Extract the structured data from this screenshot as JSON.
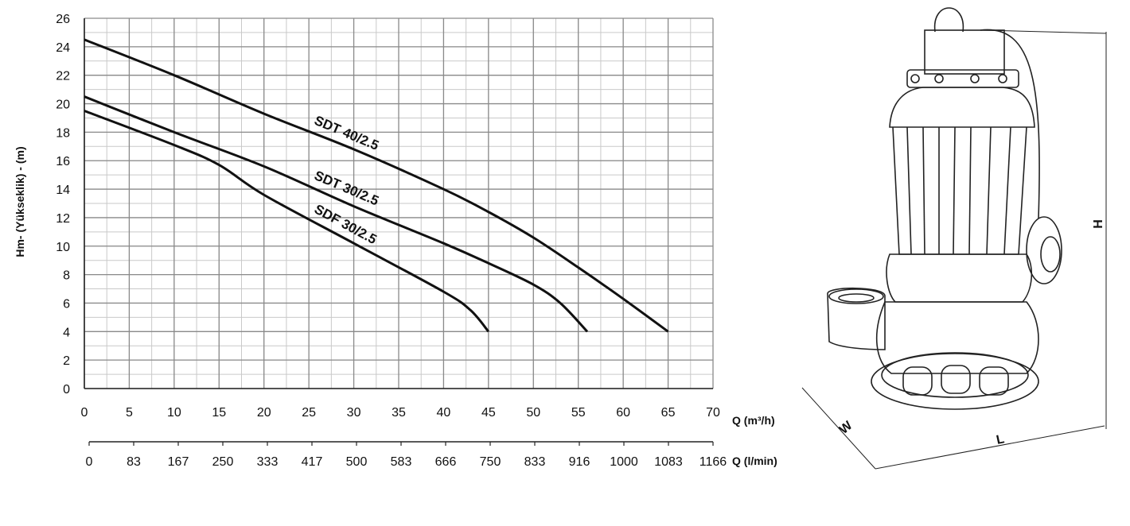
{
  "chart_data": {
    "type": "line",
    "xlabel": "Q (m³/h)",
    "xlabel_secondary": "Q (l/min)",
    "ylabel": "Hm- (Yükseklik) - (m)",
    "xlim": [
      0,
      70
    ],
    "ylim": [
      0,
      26
    ],
    "grid": true,
    "x_ticks": [
      "0",
      "5",
      "10",
      "15",
      "20",
      "25",
      "30",
      "35",
      "40",
      "45",
      "50",
      "55",
      "60",
      "65",
      "70"
    ],
    "y_ticks": [
      "0",
      "2",
      "4",
      "6",
      "8",
      "10",
      "12",
      "14",
      "16",
      "18",
      "20",
      "22",
      "24",
      "26"
    ],
    "secondary_x_ticks": [
      "0",
      "83",
      "167",
      "250",
      "333",
      "417",
      "500",
      "583",
      "666",
      "750",
      "833",
      "916",
      "1000",
      "1083",
      "1166"
    ],
    "series": [
      {
        "name": "SDT 40/2.5",
        "x": [
          0,
          10,
          20,
          30,
          40,
          45,
          50,
          55,
          60,
          65
        ],
        "y": [
          24.5,
          22.0,
          19.3,
          16.8,
          14.0,
          12.4,
          10.6,
          8.5,
          6.3,
          4.0
        ]
      },
      {
        "name": "SDT 30/2.5",
        "x": [
          0,
          10,
          20,
          30,
          40,
          45,
          50,
          53,
          56
        ],
        "y": [
          20.5,
          18.0,
          15.6,
          12.8,
          10.2,
          8.8,
          7.3,
          6.0,
          4.0
        ]
      },
      {
        "name": "SDF 30/2.5",
        "x": [
          0,
          10,
          15,
          20,
          30,
          40,
          43,
          45
        ],
        "y": [
          19.5,
          17.1,
          15.7,
          13.6,
          10.2,
          6.8,
          5.5,
          4.0
        ]
      }
    ]
  },
  "pump_drawing": {
    "dimension_labels": {
      "height": "H",
      "width": "W",
      "length": "L"
    }
  }
}
